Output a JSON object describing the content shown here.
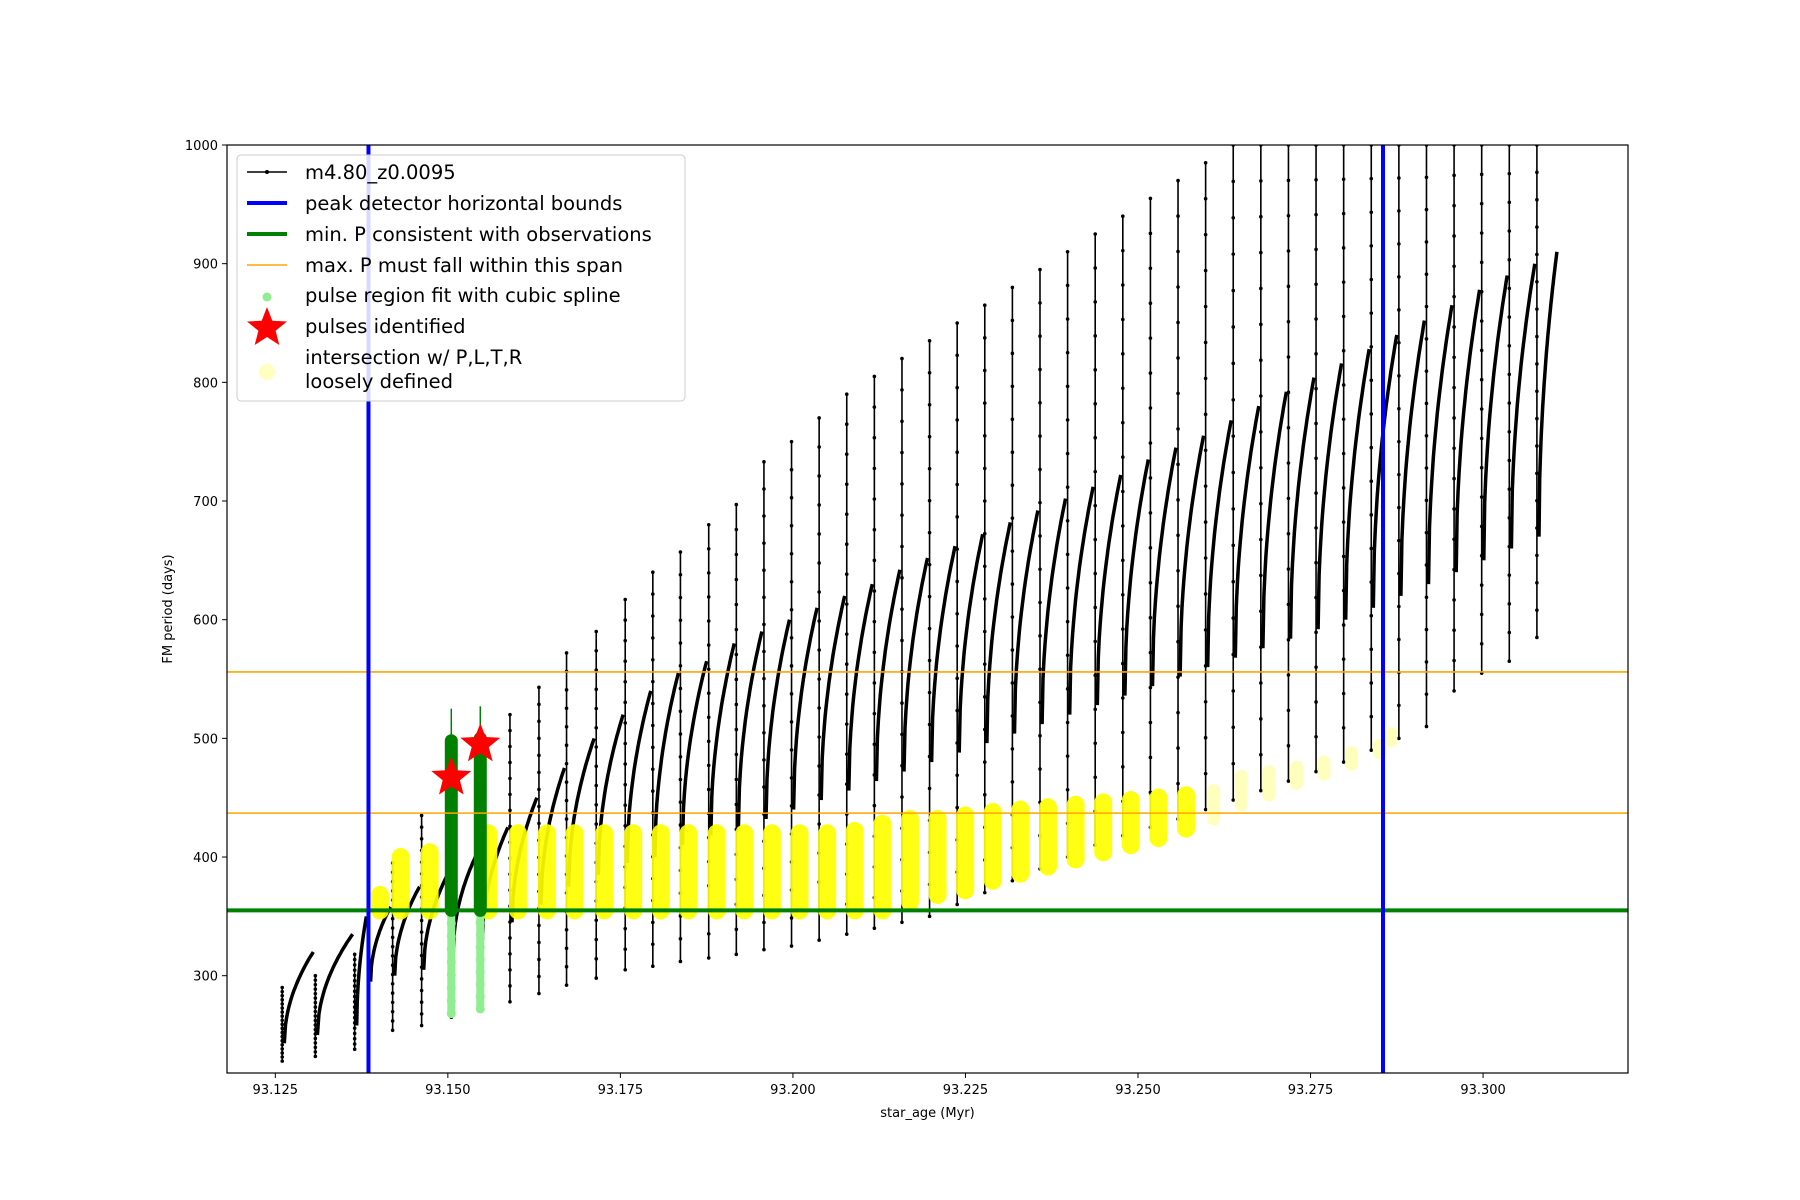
{
  "chart_data": {
    "type": "line",
    "xlabel": "star_age (Myr)",
    "ylabel": "FM period (days)",
    "xlim": [
      93.118,
      93.321
    ],
    "ylim": [
      218,
      1000
    ],
    "x_ticks": [
      "93.125",
      "93.150",
      "93.175",
      "93.200",
      "93.225",
      "93.250",
      "93.275",
      "93.300"
    ],
    "x_tick_values": [
      93.125,
      93.15,
      93.175,
      93.2,
      93.225,
      93.25,
      93.275,
      93.3
    ],
    "y_ticks": [
      "300",
      "400",
      "500",
      "600",
      "700",
      "800",
      "900",
      "1000"
    ],
    "y_tick_values": [
      300,
      400,
      500,
      600,
      700,
      800,
      900,
      1000
    ],
    "legend_position": "upper-left",
    "legend": [
      {
        "label": "m4.80_z0.0095",
        "kind": "line-marker",
        "color": "#000000"
      },
      {
        "label": "peak detector horizontal bounds",
        "kind": "line",
        "color": "#0000ff"
      },
      {
        "label": "min. P consistent with observations",
        "kind": "line",
        "color": "#008000"
      },
      {
        "label": "max. P must fall within this span",
        "kind": "thin-line",
        "color": "#ffa500"
      },
      {
        "label": "pulse region fit with cubic spline",
        "kind": "dot",
        "color": "#90ee90"
      },
      {
        "label": "pulses identified",
        "kind": "star",
        "color": "#ff0000"
      },
      {
        "label": "intersection w/ P,L,T,R",
        "label2": "loosely defined",
        "kind": "big-dot",
        "color": "#ffffc0"
      }
    ],
    "vertical_bounds_x": [
      93.1385,
      93.2855
    ],
    "min_period_line_y": 355,
    "max_period_span_y": [
      437,
      556
    ],
    "pulse_stars": [
      {
        "x": 93.1505,
        "y": 467
      },
      {
        "x": 93.1547,
        "y": 495
      }
    ],
    "pulse_cycles": [
      {
        "x": 93.126,
        "min": 228,
        "max": 290,
        "period_start": 243,
        "period_peak": 320,
        "next_x": 93.1308
      },
      {
        "x": 93.1308,
        "min": 232,
        "max": 300,
        "period_start": 250,
        "period_peak": 335,
        "next_x": 93.1365
      },
      {
        "x": 93.1365,
        "min": 238,
        "max": 318,
        "period_start": 258,
        "period_peak": 350,
        "next_x": 93.1385
      },
      {
        "x": 93.1385,
        "min": 245,
        "max": 330,
        "period_start": 295,
        "period_peak": 358,
        "next_x": 93.142
      },
      {
        "x": 93.142,
        "min": 254,
        "max": 395,
        "period_start": 300,
        "period_peak": 375,
        "next_x": 93.1462
      },
      {
        "x": 93.1462,
        "min": 258,
        "max": 435,
        "period_start": 305,
        "period_peak": 388,
        "next_x": 93.1505
      },
      {
        "x": 93.1505,
        "min": 265,
        "max": 498,
        "period_start": 320,
        "period_peak": 405,
        "next_x": 93.1547
      },
      {
        "x": 93.1547,
        "min": 270,
        "max": 500,
        "period_start": 330,
        "period_peak": 425,
        "next_x": 93.159
      },
      {
        "x": 93.159,
        "min": 278,
        "max": 520,
        "period_start": 345,
        "period_peak": 450,
        "next_x": 93.1632
      },
      {
        "x": 93.1632,
        "min": 285,
        "max": 543,
        "period_start": 360,
        "period_peak": 475,
        "next_x": 93.1672
      },
      {
        "x": 93.1672,
        "min": 292,
        "max": 572,
        "period_start": 375,
        "period_peak": 500,
        "next_x": 93.1715
      },
      {
        "x": 93.1715,
        "min": 298,
        "max": 590,
        "period_start": 385,
        "period_peak": 520,
        "next_x": 93.1757
      },
      {
        "x": 93.1757,
        "min": 305,
        "max": 617,
        "period_start": 395,
        "period_peak": 540,
        "next_x": 93.1797
      },
      {
        "x": 93.1797,
        "min": 308,
        "max": 640,
        "period_start": 400,
        "period_peak": 555,
        "next_x": 93.1837
      },
      {
        "x": 93.1837,
        "min": 312,
        "max": 657,
        "period_start": 410,
        "period_peak": 565,
        "next_x": 93.1878
      },
      {
        "x": 93.1878,
        "min": 315,
        "max": 680,
        "period_start": 418,
        "period_peak": 580,
        "next_x": 93.1918
      },
      {
        "x": 93.1918,
        "min": 318,
        "max": 697,
        "period_start": 425,
        "period_peak": 590,
        "next_x": 93.1958
      },
      {
        "x": 93.1958,
        "min": 322,
        "max": 733,
        "period_start": 432,
        "period_peak": 600,
        "next_x": 93.1998
      },
      {
        "x": 93.1998,
        "min": 325,
        "max": 750,
        "period_start": 440,
        "period_peak": 610,
        "next_x": 93.2038
      },
      {
        "x": 93.2038,
        "min": 330,
        "max": 770,
        "period_start": 448,
        "period_peak": 620,
        "next_x": 93.2078
      },
      {
        "x": 93.2078,
        "min": 335,
        "max": 790,
        "period_start": 456,
        "period_peak": 630,
        "next_x": 93.2118
      },
      {
        "x": 93.2118,
        "min": 340,
        "max": 805,
        "period_start": 464,
        "period_peak": 642,
        "next_x": 93.2158
      },
      {
        "x": 93.2158,
        "min": 345,
        "max": 820,
        "period_start": 472,
        "period_peak": 652,
        "next_x": 93.2198
      },
      {
        "x": 93.2198,
        "min": 350,
        "max": 835,
        "period_start": 480,
        "period_peak": 662,
        "next_x": 93.2238
      },
      {
        "x": 93.2238,
        "min": 360,
        "max": 850,
        "period_start": 488,
        "period_peak": 672,
        "next_x": 93.2278
      },
      {
        "x": 93.2278,
        "min": 370,
        "max": 865,
        "period_start": 496,
        "period_peak": 682,
        "next_x": 93.2318
      },
      {
        "x": 93.2318,
        "min": 380,
        "max": 880,
        "period_start": 504,
        "period_peak": 692,
        "next_x": 93.2358
      },
      {
        "x": 93.2358,
        "min": 390,
        "max": 895,
        "period_start": 512,
        "period_peak": 702,
        "next_x": 93.2398
      },
      {
        "x": 93.2398,
        "min": 400,
        "max": 910,
        "period_start": 520,
        "period_peak": 712,
        "next_x": 93.2438
      },
      {
        "x": 93.2438,
        "min": 410,
        "max": 925,
        "period_start": 528,
        "period_peak": 722,
        "next_x": 93.2478
      },
      {
        "x": 93.2478,
        "min": 418,
        "max": 940,
        "period_start": 536,
        "period_peak": 735,
        "next_x": 93.2518
      },
      {
        "x": 93.2518,
        "min": 425,
        "max": 955,
        "period_start": 544,
        "period_peak": 745,
        "next_x": 93.2558
      },
      {
        "x": 93.2558,
        "min": 432,
        "max": 970,
        "period_start": 552,
        "period_peak": 755,
        "next_x": 93.2598
      },
      {
        "x": 93.2598,
        "min": 440,
        "max": 985,
        "period_start": 560,
        "period_peak": 768,
        "next_x": 93.2638
      },
      {
        "x": 93.2638,
        "min": 448,
        "max": 1000,
        "period_start": 568,
        "period_peak": 780,
        "next_x": 93.2678
      },
      {
        "x": 93.2678,
        "min": 456,
        "max": 1000,
        "period_start": 576,
        "period_peak": 792,
        "next_x": 93.2718
      },
      {
        "x": 93.2718,
        "min": 464,
        "max": 1000,
        "period_start": 584,
        "period_peak": 804,
        "next_x": 93.2758
      },
      {
        "x": 93.2758,
        "min": 472,
        "max": 1000,
        "period_start": 592,
        "period_peak": 816,
        "next_x": 93.2798
      },
      {
        "x": 93.2798,
        "min": 480,
        "max": 1000,
        "period_start": 600,
        "period_peak": 828,
        "next_x": 93.2838
      },
      {
        "x": 93.2838,
        "min": 490,
        "max": 1000,
        "period_start": 610,
        "period_peak": 840,
        "next_x": 93.2878
      },
      {
        "x": 93.2878,
        "min": 500,
        "max": 1000,
        "period_start": 620,
        "period_peak": 852,
        "next_x": 93.2918
      },
      {
        "x": 93.2918,
        "min": 510,
        "max": 1000,
        "period_start": 630,
        "period_peak": 865,
        "next_x": 93.2958
      },
      {
        "x": 93.2958,
        "min": 540,
        "max": 1000,
        "period_start": 640,
        "period_peak": 878,
        "next_x": 93.2998
      },
      {
        "x": 93.2998,
        "min": 555,
        "max": 1000,
        "period_start": 650,
        "period_peak": 890,
        "next_x": 93.3038
      },
      {
        "x": 93.3038,
        "min": 565,
        "max": 1000,
        "period_start": 660,
        "period_peak": 900,
        "next_x": 93.3078
      },
      {
        "x": 93.3078,
        "min": 585,
        "max": 1000,
        "period_start": 670,
        "period_peak": 910,
        "next_x": 93.311
      }
    ],
    "green_bands": [
      {
        "x": 93.1505,
        "min": 355,
        "max": 498,
        "spline_min": 268
      },
      {
        "x": 93.1547,
        "min": 355,
        "max": 500,
        "spline_min": 272
      }
    ],
    "yellow_cycles": [
      {
        "x": 93.139,
        "min": 355,
        "max": 368
      },
      {
        "x": 93.142,
        "min": 355,
        "max": 400
      },
      {
        "x": 93.1462,
        "min": 355,
        "max": 404
      },
      {
        "x": 93.1547,
        "min": 355,
        "max": 420
      },
      {
        "x": 93.159,
        "min": 355,
        "max": 420
      },
      {
        "x": 93.1632,
        "min": 355,
        "max": 420
      },
      {
        "x": 93.1672,
        "min": 355,
        "max": 420
      },
      {
        "x": 93.1715,
        "min": 355,
        "max": 420
      },
      {
        "x": 93.1757,
        "min": 355,
        "max": 420
      },
      {
        "x": 93.1797,
        "min": 355,
        "max": 420
      },
      {
        "x": 93.1837,
        "min": 355,
        "max": 420
      },
      {
        "x": 93.1878,
        "min": 355,
        "max": 420
      },
      {
        "x": 93.1918,
        "min": 355,
        "max": 420
      },
      {
        "x": 93.1958,
        "min": 355,
        "max": 420
      },
      {
        "x": 93.1998,
        "min": 355,
        "max": 420
      },
      {
        "x": 93.2038,
        "min": 355,
        "max": 420
      },
      {
        "x": 93.2078,
        "min": 355,
        "max": 422
      },
      {
        "x": 93.2118,
        "min": 355,
        "max": 428
      },
      {
        "x": 93.2158,
        "min": 362,
        "max": 432
      },
      {
        "x": 93.2198,
        "min": 368,
        "max": 432
      },
      {
        "x": 93.2238,
        "min": 372,
        "max": 435
      },
      {
        "x": 93.2278,
        "min": 380,
        "max": 438
      },
      {
        "x": 93.2318,
        "min": 386,
        "max": 440
      },
      {
        "x": 93.2358,
        "min": 392,
        "max": 442
      },
      {
        "x": 93.2398,
        "min": 398,
        "max": 444
      },
      {
        "x": 93.2438,
        "min": 404,
        "max": 446
      },
      {
        "x": 93.2478,
        "min": 410,
        "max": 448
      },
      {
        "x": 93.2518,
        "min": 416,
        "max": 450
      },
      {
        "x": 93.2558,
        "min": 424,
        "max": 452
      },
      {
        "x": 93.2598,
        "min": 432,
        "max": 456
      },
      {
        "x": 93.2638,
        "min": 444,
        "max": 468
      },
      {
        "x": 93.2678,
        "min": 452,
        "max": 472
      },
      {
        "x": 93.2718,
        "min": 462,
        "max": 476
      },
      {
        "x": 93.2758,
        "min": 470,
        "max": 480
      },
      {
        "x": 93.2798,
        "min": 478,
        "max": 488
      },
      {
        "x": 93.2838,
        "min": 488,
        "max": 494
      },
      {
        "x": 93.2855,
        "min": 498,
        "max": 504
      }
    ]
  }
}
